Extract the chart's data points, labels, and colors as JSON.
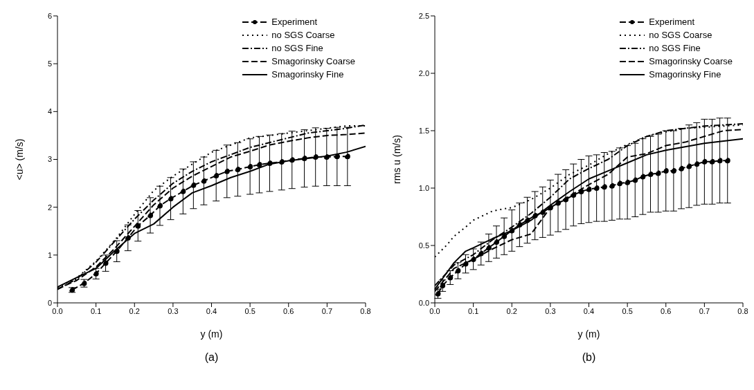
{
  "chart_data": [
    {
      "type": "line",
      "xlabel": "y (m)",
      "ylabel": "<u> (m/s)",
      "annotations": [
        "(a)"
      ],
      "xlim": [
        0,
        0.8
      ],
      "xticks": [
        {
          "value": 0,
          "label": "0.0"
        },
        0.1,
        0.2,
        0.3,
        0.4,
        0.5,
        0.6,
        0.7,
        0.8
      ],
      "ylim": [
        0,
        6
      ],
      "yticks": [
        0,
        1,
        2,
        3,
        4,
        5,
        6
      ],
      "grid": false,
      "legend": "top right",
      "series": [
        {
          "name": "Experiment",
          "color": "#000000",
          "line_style": "dashed",
          "marker": "circle",
          "x": [
            0.038,
            0.069,
            0.1,
            0.125,
            0.154,
            0.183,
            0.209,
            0.241,
            0.266,
            0.294,
            0.326,
            0.353,
            0.38,
            0.412,
            0.44,
            0.468,
            0.5,
            0.524,
            0.551,
            0.582,
            0.609,
            0.641,
            0.67,
            0.699,
            0.726,
            0.753
          ],
          "values": [
            0.27,
            0.41,
            0.61,
            0.83,
            1.08,
            1.36,
            1.61,
            1.83,
            2.03,
            2.18,
            2.33,
            2.46,
            2.55,
            2.66,
            2.75,
            2.79,
            2.85,
            2.89,
            2.92,
            2.95,
            2.99,
            3.02,
            3.05,
            3.05,
            3.06,
            3.06
          ],
          "errors": [
            0.05,
            0.08,
            0.11,
            0.17,
            0.22,
            0.27,
            0.32,
            0.37,
            0.41,
            0.44,
            0.47,
            0.49,
            0.5,
            0.53,
            0.55,
            0.56,
            0.58,
            0.59,
            0.59,
            0.59,
            0.6,
            0.6,
            0.61,
            0.6,
            0.61,
            0.61
          ]
        },
        {
          "name": "no SGS Coarse",
          "color": "#000000",
          "line_style": "dotted",
          "marker": "none",
          "x": [
            0,
            0.05,
            0.1,
            0.15,
            0.2,
            0.25,
            0.3,
            0.35,
            0.4,
            0.45,
            0.5,
            0.55,
            0.6,
            0.65,
            0.7,
            0.75,
            0.8
          ],
          "values": [
            0.31,
            0.52,
            0.87,
            1.32,
            1.85,
            2.35,
            2.65,
            2.9,
            3.15,
            3.3,
            3.45,
            3.5,
            3.55,
            3.6,
            3.65,
            3.7,
            3.7
          ]
        },
        {
          "name": "no SGS Fine",
          "color": "#000000",
          "line_style": "dashdot",
          "marker": "none",
          "x": [
            0,
            0.05,
            0.1,
            0.15,
            0.2,
            0.25,
            0.3,
            0.35,
            0.4,
            0.45,
            0.5,
            0.55,
            0.6,
            0.65,
            0.7,
            0.75,
            0.8
          ],
          "values": [
            0.28,
            0.5,
            0.85,
            1.3,
            1.75,
            2.15,
            2.5,
            2.75,
            2.95,
            3.1,
            3.25,
            3.35,
            3.45,
            3.55,
            3.6,
            3.65,
            3.72
          ]
        },
        {
          "name": "Smagorinsky Coarse",
          "color": "#000000",
          "line_style": "dashed",
          "marker": "none",
          "x": [
            0,
            0.05,
            0.1,
            0.15,
            0.2,
            0.25,
            0.3,
            0.35,
            0.4,
            0.45,
            0.5,
            0.55,
            0.6,
            0.65,
            0.7,
            0.75,
            0.8
          ],
          "values": [
            0.29,
            0.47,
            0.75,
            1.15,
            1.6,
            2.05,
            2.4,
            2.65,
            2.85,
            3.05,
            3.17,
            3.3,
            3.38,
            3.45,
            3.5,
            3.52,
            3.55
          ]
        },
        {
          "name": "Smagorinsky Fine",
          "color": "#000000",
          "line_style": "solid",
          "marker": "none",
          "x": [
            0,
            0.05,
            0.1,
            0.15,
            0.2,
            0.25,
            0.3,
            0.35,
            0.4,
            0.45,
            0.5,
            0.55,
            0.6,
            0.65,
            0.7,
            0.75,
            0.8
          ],
          "values": [
            0.33,
            0.53,
            0.72,
            1.1,
            1.45,
            1.65,
            2.0,
            2.3,
            2.45,
            2.62,
            2.75,
            2.9,
            2.97,
            3.02,
            3.07,
            3.15,
            3.27
          ]
        }
      ]
    },
    {
      "type": "line",
      "xlabel": "y (m)",
      "ylabel": "rms u (m/s)",
      "annotations": [
        "(b)"
      ],
      "xlim": [
        0,
        0.8
      ],
      "xticks": [
        {
          "value": 0,
          "label": "0.0"
        },
        0.1,
        0.2,
        0.3,
        0.4,
        0.5,
        0.6,
        0.7,
        0.8
      ],
      "ylim": [
        0,
        2.5
      ],
      "yticks": [
        {
          "value": 0,
          "label": "0.0"
        },
        0.5,
        {
          "value": 1,
          "label": "1.0"
        },
        1.5,
        {
          "value": 2,
          "label": "2.0"
        },
        2.5
      ],
      "grid": false,
      "legend": "top right",
      "series": [
        {
          "name": "Experiment",
          "color": "#000000",
          "line_style": "dashed",
          "marker": "circle",
          "x": [
            0.008,
            0.02,
            0.04,
            0.06,
            0.08,
            0.1,
            0.12,
            0.14,
            0.16,
            0.18,
            0.2,
            0.22,
            0.24,
            0.26,
            0.28,
            0.3,
            0.32,
            0.34,
            0.36,
            0.38,
            0.4,
            0.42,
            0.44,
            0.46,
            0.48,
            0.5,
            0.52,
            0.54,
            0.56,
            0.58,
            0.6,
            0.62,
            0.64,
            0.66,
            0.68,
            0.7,
            0.72,
            0.74,
            0.76
          ],
          "values": [
            0.08,
            0.15,
            0.22,
            0.28,
            0.34,
            0.38,
            0.43,
            0.48,
            0.53,
            0.58,
            0.63,
            0.68,
            0.72,
            0.76,
            0.79,
            0.83,
            0.87,
            0.9,
            0.94,
            0.97,
            0.99,
            1.0,
            1.01,
            1.02,
            1.04,
            1.05,
            1.07,
            1.1,
            1.12,
            1.13,
            1.15,
            1.15,
            1.17,
            1.19,
            1.21,
            1.23,
            1.23,
            1.24,
            1.24
          ],
          "errors": [
            0.04,
            0.05,
            0.06,
            0.07,
            0.08,
            0.09,
            0.1,
            0.12,
            0.14,
            0.16,
            0.18,
            0.19,
            0.2,
            0.21,
            0.22,
            0.24,
            0.25,
            0.26,
            0.27,
            0.28,
            0.29,
            0.29,
            0.3,
            0.3,
            0.31,
            0.32,
            0.32,
            0.33,
            0.33,
            0.34,
            0.35,
            0.35,
            0.35,
            0.36,
            0.36,
            0.37,
            0.37,
            0.37,
            0.37
          ]
        },
        {
          "name": "no SGS Coarse",
          "color": "#000000",
          "line_style": "dotted",
          "marker": "none",
          "x": [
            0,
            0.03,
            0.05,
            0.08,
            0.1,
            0.15,
            0.18,
            0.2,
            0.25,
            0.3,
            0.35,
            0.4,
            0.45,
            0.5,
            0.55,
            0.6,
            0.65,
            0.7,
            0.75,
            0.8
          ],
          "values": [
            0.4,
            0.5,
            0.58,
            0.66,
            0.72,
            0.8,
            0.82,
            0.83,
            0.9,
            1.0,
            1.12,
            1.2,
            1.3,
            1.38,
            1.45,
            1.49,
            1.52,
            1.53,
            1.54,
            1.55
          ]
        },
        {
          "name": "no SGS Fine",
          "color": "#000000",
          "line_style": "dashdot",
          "marker": "none",
          "x": [
            0,
            0.05,
            0.1,
            0.15,
            0.2,
            0.25,
            0.3,
            0.35,
            0.4,
            0.45,
            0.5,
            0.55,
            0.6,
            0.65,
            0.7,
            0.75,
            0.8
          ],
          "values": [
            0.15,
            0.33,
            0.42,
            0.55,
            0.66,
            0.78,
            0.92,
            1.08,
            1.17,
            1.25,
            1.37,
            1.45,
            1.5,
            1.52,
            1.54,
            1.55,
            1.56
          ]
        },
        {
          "name": "Smagorinsky Coarse",
          "color": "#000000",
          "line_style": "dashed",
          "marker": "none",
          "x": [
            0,
            0.05,
            0.1,
            0.15,
            0.2,
            0.25,
            0.3,
            0.35,
            0.4,
            0.45,
            0.5,
            0.55,
            0.6,
            0.65,
            0.7,
            0.75,
            0.8
          ],
          "values": [
            0.1,
            0.3,
            0.38,
            0.47,
            0.55,
            0.6,
            0.83,
            0.93,
            1.03,
            1.12,
            1.27,
            1.3,
            1.37,
            1.4,
            1.45,
            1.5,
            1.51
          ]
        },
        {
          "name": "Smagorinsky Fine",
          "color": "#000000",
          "line_style": "solid",
          "marker": "none",
          "x": [
            0,
            0.05,
            0.08,
            0.1,
            0.15,
            0.2,
            0.25,
            0.3,
            0.35,
            0.4,
            0.45,
            0.5,
            0.55,
            0.6,
            0.65,
            0.7,
            0.75,
            0.8
          ],
          "values": [
            0.12,
            0.35,
            0.45,
            0.48,
            0.56,
            0.63,
            0.72,
            0.85,
            0.97,
            1.08,
            1.15,
            1.22,
            1.29,
            1.33,
            1.36,
            1.39,
            1.41,
            1.43
          ]
        }
      ]
    }
  ]
}
